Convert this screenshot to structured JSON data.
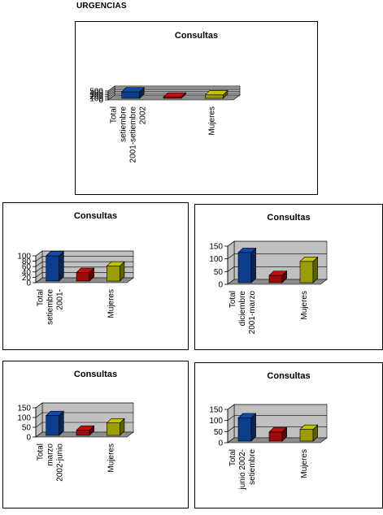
{
  "page": {
    "title": "URGENCIAS"
  },
  "chart_data": [
    {
      "type": "bar",
      "title": "Consultas",
      "categories": [
        "Total\nsetiembre\n2001-setiembre\n2002",
        "",
        "Mujeres"
      ],
      "values": [
        450,
        160,
        280
      ],
      "ylim": [
        0,
        500
      ],
      "yticks": [
        0,
        100,
        200,
        300,
        400,
        500
      ],
      "colors": [
        "#0c3c8c",
        "#9c0a0a",
        "#9c9c06"
      ],
      "grid": true,
      "xlabel": "",
      "ylabel": ""
    },
    {
      "type": "bar",
      "title": "Consultas",
      "categories": [
        "Total\nsetiembre\n2001-",
        "",
        "Mujeres"
      ],
      "values": [
        100,
        38,
        62
      ],
      "ylim": [
        0,
        100
      ],
      "yticks": [
        0,
        20,
        40,
        60,
        80,
        100
      ],
      "colors": [
        "#0c3c8c",
        "#9c0a0a",
        "#9c9c06"
      ],
      "grid": true,
      "xlabel": "",
      "ylabel": ""
    },
    {
      "type": "bar",
      "title": "Consultas",
      "categories": [
        "Total\ndiciembre\n2001-marzo",
        "",
        "Mujeres"
      ],
      "values": [
        125,
        35,
        90
      ],
      "ylim": [
        0,
        150
      ],
      "yticks": [
        0,
        50,
        100,
        150
      ],
      "colors": [
        "#0c3c8c",
        "#9c0a0a",
        "#9c9c06"
      ],
      "grid": true,
      "xlabel": "",
      "ylabel": ""
    },
    {
      "type": "bar",
      "title": "Consultas",
      "categories": [
        "Total\nmarzo\n2002-junio",
        "",
        "Mujeres"
      ],
      "values": [
        110,
        35,
        72
      ],
      "ylim": [
        0,
        150
      ],
      "yticks": [
        0,
        50,
        100,
        150
      ],
      "colors": [
        "#0c3c8c",
        "#9c0a0a",
        "#9c9c06"
      ],
      "grid": true,
      "xlabel": "",
      "ylabel": ""
    },
    {
      "type": "bar",
      "title": "Consultas",
      "categories": [
        "Total\njunio 2002-\nsetiembre",
        "",
        "Mujeres"
      ],
      "values": [
        112,
        48,
        60
      ],
      "ylim": [
        0,
        150
      ],
      "yticks": [
        0,
        50,
        100,
        150
      ],
      "colors": [
        "#0c3c8c",
        "#9c0a0a",
        "#9c9c06"
      ],
      "grid": true,
      "xlabel": "",
      "ylabel": ""
    }
  ]
}
